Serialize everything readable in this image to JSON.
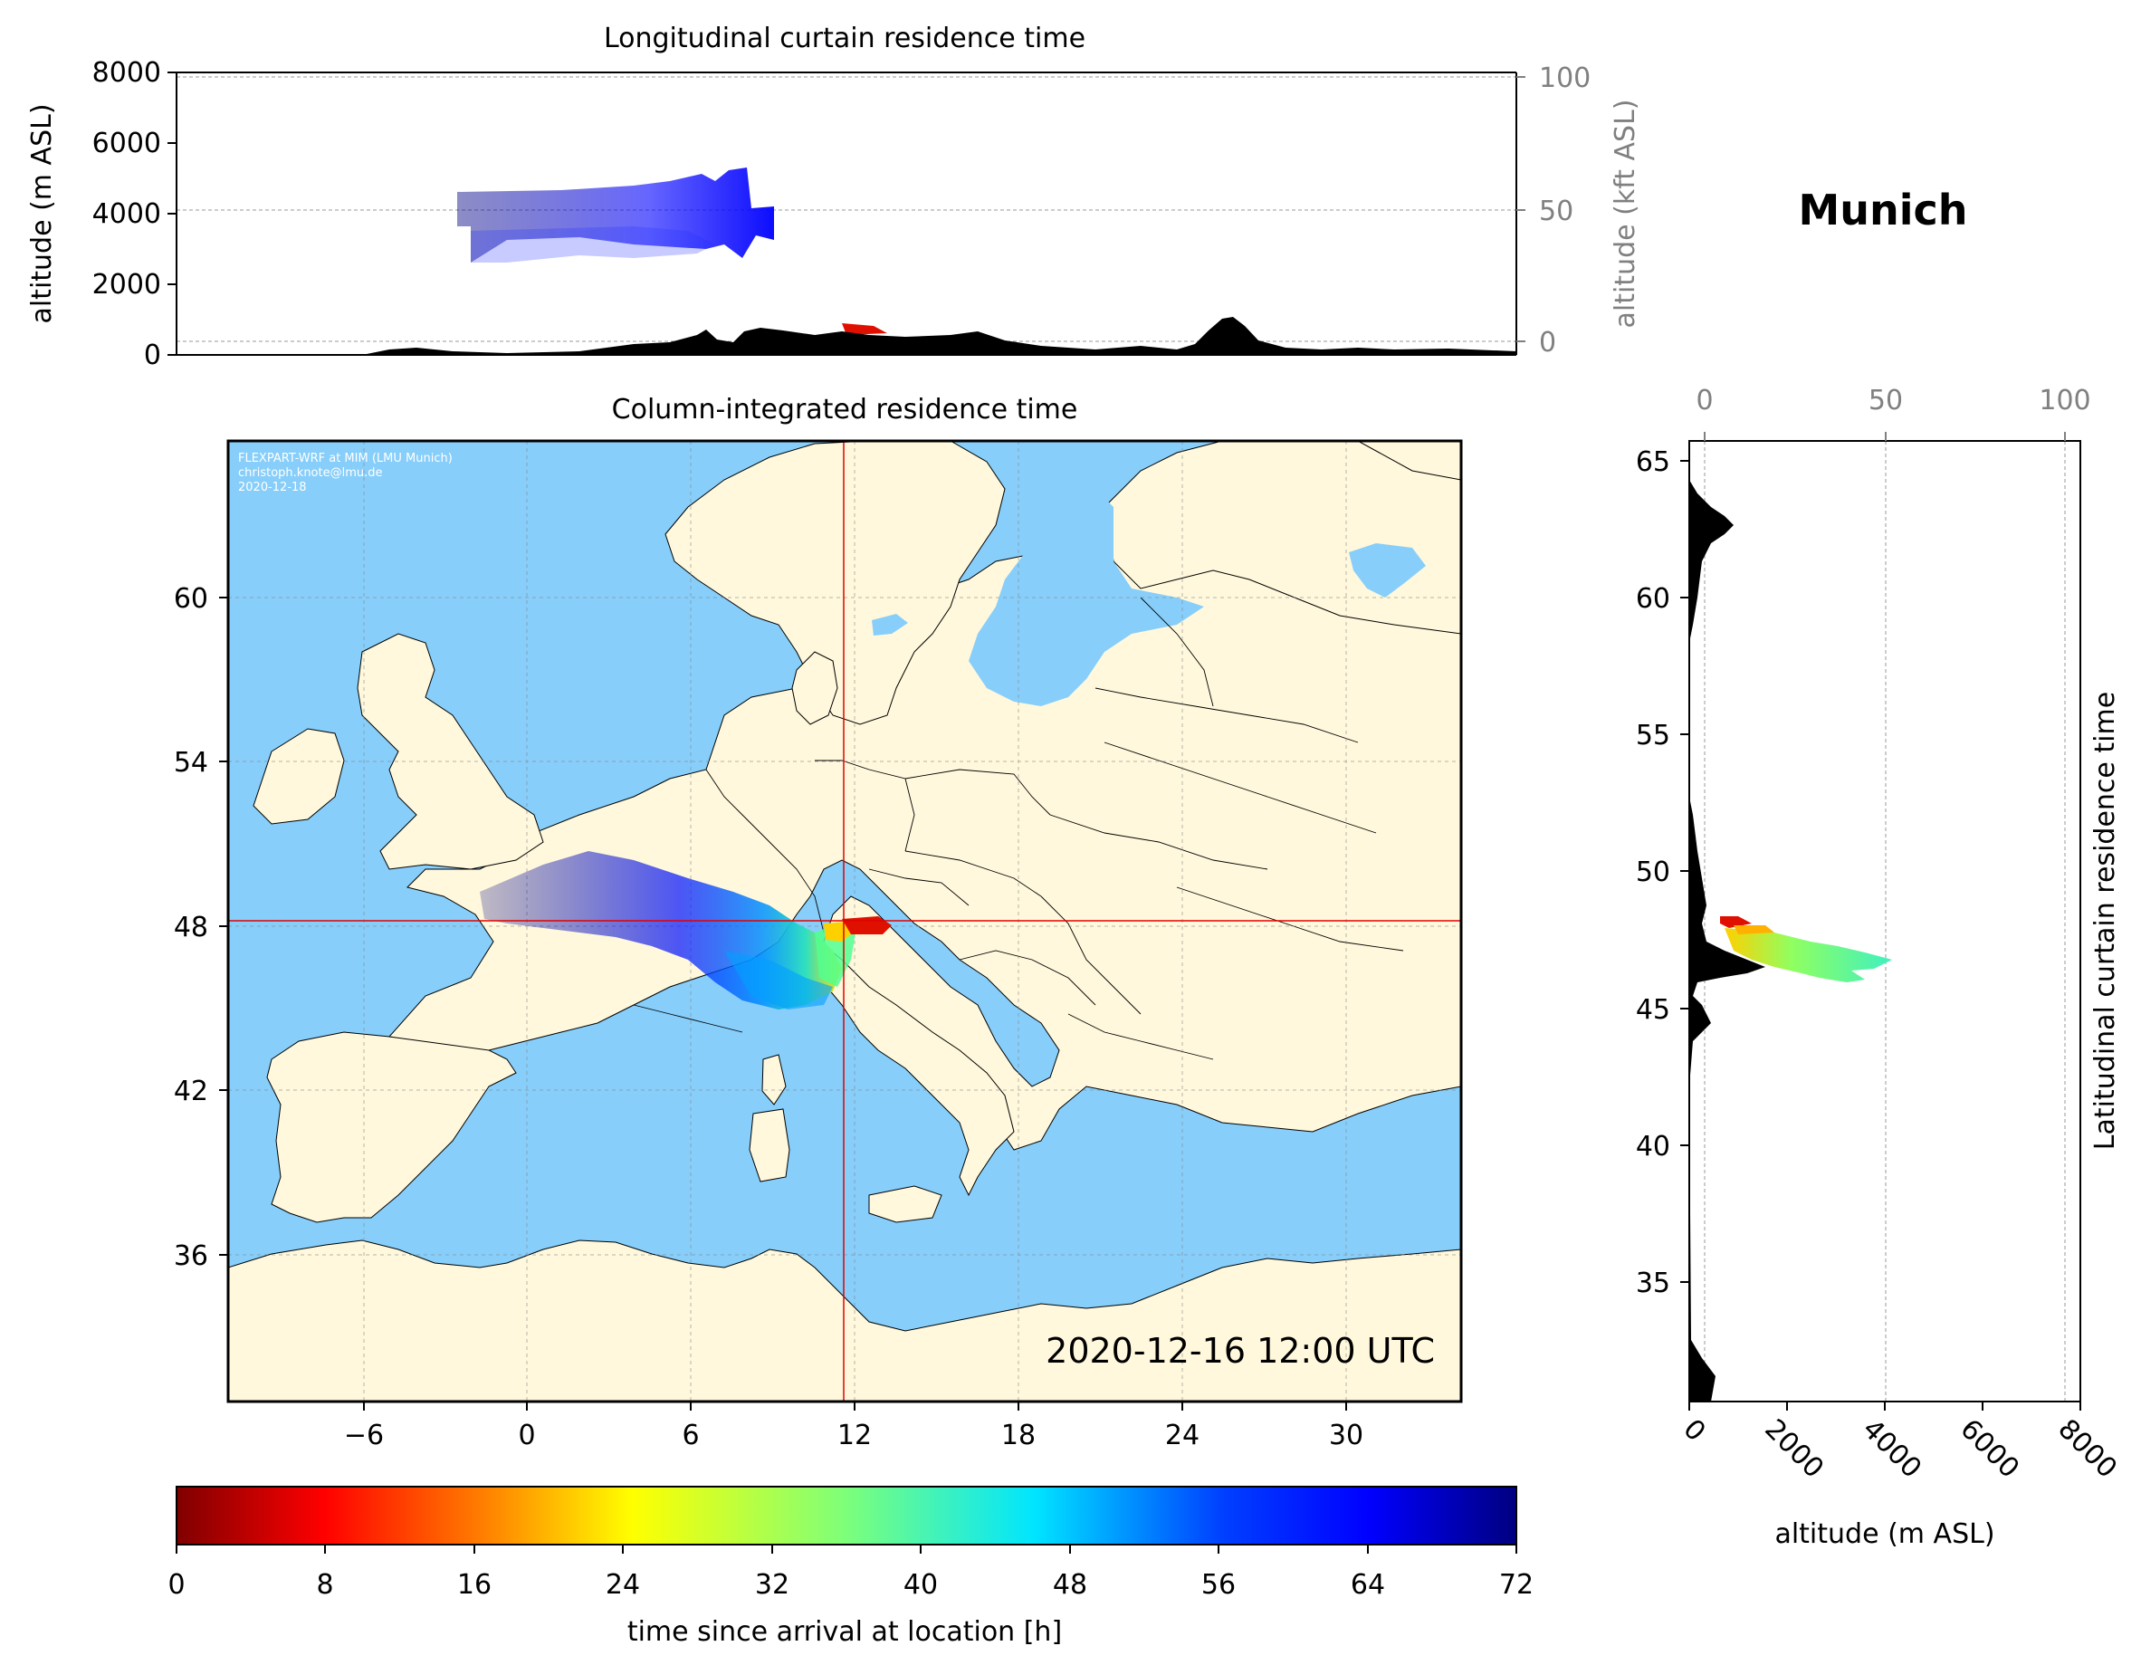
{
  "location": "Munich",
  "top_panel": {
    "title": "Longitudinal curtain residence time",
    "ylabel_left": "altitude (m ASL)",
    "ylabel_right": "altitude (kft ASL)",
    "yticks_left": [
      "0",
      "2000",
      "4000",
      "6000",
      "8000"
    ],
    "yticks_right": [
      "0",
      "50",
      "100"
    ]
  },
  "map_panel": {
    "title": "Column-integrated residence time",
    "credit_lines": [
      "FLEXPART-WRF at MIM (LMU Munich)",
      "christoph.knote@lmu.de",
      "2020-12-18"
    ],
    "timestamp": "2020-12-16 12:00 UTC",
    "xticks": [
      "−6",
      "0",
      "6",
      "12",
      "18",
      "24",
      "30"
    ],
    "yticks": [
      "36",
      "42",
      "48",
      "54",
      "60"
    ],
    "colors": {
      "sea": "#87CEFA",
      "land": "#FFF8DC",
      "crosshair": "#e00000"
    }
  },
  "right_panel": {
    "ylabel": "Latitudinal curtain residence time",
    "xlabel": "altitude (m ASL)",
    "xticks_bottom": [
      "0",
      "2000",
      "4000",
      "6000",
      "8000"
    ],
    "xticks_top": [
      "0",
      "50",
      "100"
    ],
    "yticks": [
      "35",
      "40",
      "45",
      "50",
      "55",
      "60",
      "65"
    ]
  },
  "colorbar": {
    "label": "time since arrival at location [h]",
    "ticks": [
      "0",
      "8",
      "16",
      "24",
      "32",
      "40",
      "48",
      "56",
      "64",
      "72"
    ],
    "colormap": "jet_r"
  }
}
